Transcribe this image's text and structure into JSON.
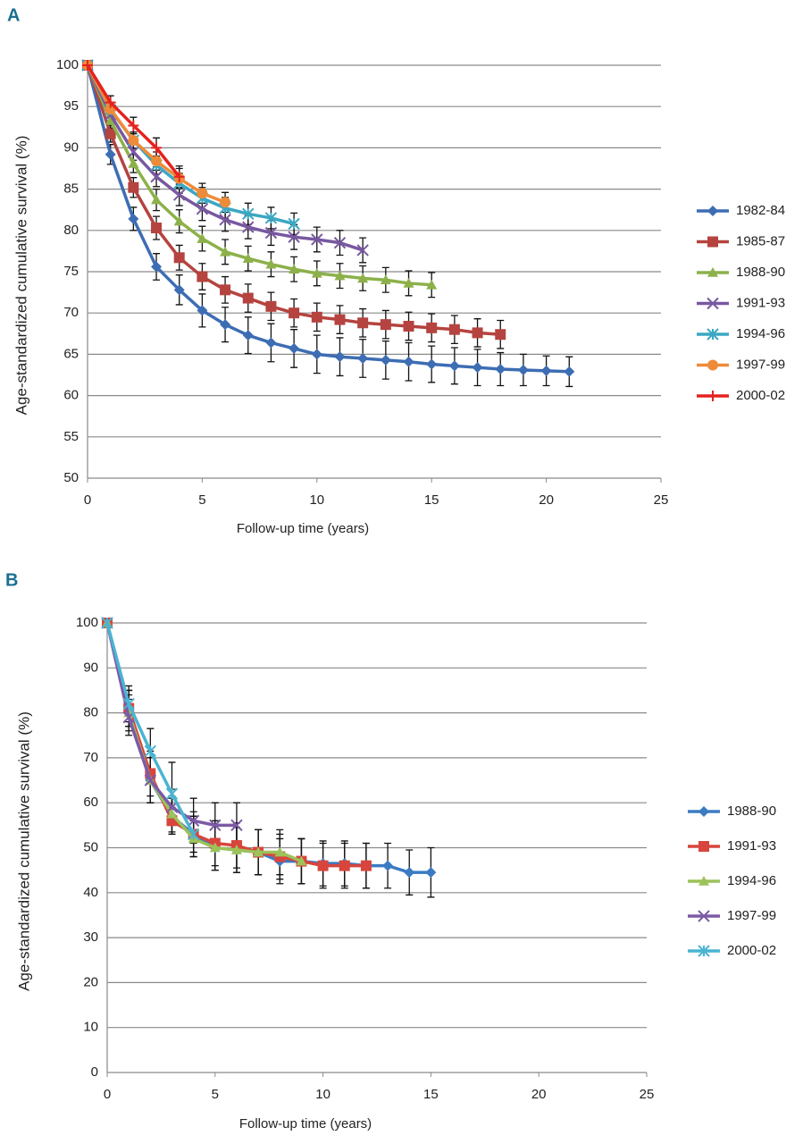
{
  "chart_data": [
    {
      "type": "line",
      "panel": "A",
      "xlabel": "Follow-up time (years)",
      "ylabel": "Age-standardized cumulative survival (%)",
      "xlim": [
        0,
        25
      ],
      "xticks": [
        0,
        5,
        10,
        15,
        20,
        25
      ],
      "ylim": [
        50,
        100
      ],
      "yticks": [
        100,
        95,
        90,
        85,
        80,
        75,
        70,
        65,
        60,
        55,
        50
      ],
      "grid": true,
      "legend": "right",
      "series": [
        {
          "name": "1982-84",
          "color": "#3d6db3",
          "marker": "diamond",
          "x": [
            0,
            1,
            2,
            3,
            4,
            5,
            6,
            7,
            8,
            9,
            10,
            11,
            12,
            13,
            14,
            15,
            16,
            17,
            18,
            19,
            20,
            21
          ],
          "values": [
            100,
            89.2,
            81.4,
            75.6,
            72.8,
            70.3,
            68.6,
            67.3,
            66.4,
            65.7,
            65.0,
            64.7,
            64.5,
            64.3,
            64.1,
            63.8,
            63.6,
            63.4,
            63.2,
            63.1,
            63.0,
            62.9
          ],
          "errors": [
            0,
            1.2,
            1.4,
            1.6,
            1.8,
            2.0,
            2.1,
            2.2,
            2.3,
            2.3,
            2.3,
            2.3,
            2.3,
            2.3,
            2.3,
            2.2,
            2.2,
            2.2,
            2.0,
            1.9,
            1.8,
            1.8
          ]
        },
        {
          "name": "1985-87",
          "color": "#b5433f",
          "marker": "square",
          "x": [
            0,
            1,
            2,
            3,
            4,
            5,
            6,
            7,
            8,
            9,
            10,
            11,
            12,
            13,
            14,
            15,
            16,
            17,
            18
          ],
          "values": [
            100,
            91.7,
            85.2,
            80.3,
            76.7,
            74.4,
            72.8,
            71.8,
            70.8,
            70.0,
            69.5,
            69.2,
            68.8,
            68.6,
            68.4,
            68.2,
            68.0,
            67.6,
            67.4
          ],
          "errors": [
            0,
            1.0,
            1.2,
            1.4,
            1.5,
            1.6,
            1.6,
            1.7,
            1.7,
            1.7,
            1.7,
            1.7,
            1.7,
            1.7,
            1.7,
            1.7,
            1.7,
            1.7,
            1.7
          ]
        },
        {
          "name": "1988-90",
          "color": "#8cb14a",
          "marker": "triangle",
          "x": [
            0,
            1,
            2,
            3,
            4,
            5,
            6,
            7,
            8,
            9,
            10,
            11,
            12,
            13,
            14,
            15
          ],
          "values": [
            100,
            93.3,
            88.1,
            83.7,
            81.1,
            79.0,
            77.4,
            76.6,
            75.9,
            75.3,
            74.8,
            74.5,
            74.2,
            74.0,
            73.6,
            73.4
          ],
          "errors": [
            0,
            0.9,
            1.1,
            1.3,
            1.4,
            1.5,
            1.5,
            1.5,
            1.5,
            1.5,
            1.5,
            1.5,
            1.5,
            1.5,
            1.5,
            1.5
          ]
        },
        {
          "name": "1991-93",
          "color": "#7858a0",
          "marker": "x",
          "x": [
            0,
            1,
            2,
            3,
            4,
            5,
            6,
            7,
            8,
            9,
            10,
            11,
            12
          ],
          "values": [
            100,
            94.0,
            89.5,
            86.5,
            84.3,
            82.6,
            81.3,
            80.4,
            79.7,
            79.2,
            78.9,
            78.5,
            77.6
          ],
          "errors": [
            0,
            0.9,
            1.0,
            1.2,
            1.3,
            1.4,
            1.4,
            1.4,
            1.5,
            1.5,
            1.5,
            1.5,
            1.5
          ]
        },
        {
          "name": "1994-96",
          "color": "#3ca7c3",
          "marker": "asterisk",
          "x": [
            0,
            1,
            2,
            3,
            4,
            5,
            6,
            7,
            8,
            9
          ],
          "values": [
            100,
            94.6,
            90.9,
            87.9,
            85.7,
            83.9,
            82.7,
            82.0,
            81.5,
            80.8
          ],
          "errors": [
            0,
            0.8,
            1.0,
            1.1,
            1.2,
            1.3,
            1.3,
            1.3,
            1.3,
            1.3
          ]
        },
        {
          "name": "1997-99",
          "color": "#ee8b39",
          "marker": "circle",
          "x": [
            0,
            1,
            2,
            3,
            4,
            5,
            6
          ],
          "values": [
            100,
            94.7,
            90.9,
            88.4,
            86.3,
            84.5,
            83.4
          ],
          "errors": [
            0,
            0.8,
            1.0,
            1.1,
            1.2,
            1.2,
            1.2
          ]
        },
        {
          "name": "2000-02",
          "color": "#e5221e",
          "marker": "plus",
          "x": [
            0,
            1,
            2,
            3,
            4
          ],
          "values": [
            100,
            95.5,
            92.7,
            90.0,
            86.5
          ],
          "errors": [
            0,
            0.8,
            1.0,
            1.2,
            1.3
          ]
        }
      ]
    },
    {
      "type": "line",
      "panel": "B",
      "xlabel": "Follow-up time (years)",
      "ylabel": "Age-standardized cumulative survival (%)",
      "xlim": [
        0,
        25
      ],
      "xticks": [
        0,
        5,
        10,
        15,
        20,
        25
      ],
      "ylim": [
        0,
        100
      ],
      "yticks": [
        0,
        10,
        20,
        30,
        40,
        50,
        60,
        70,
        80,
        90,
        100
      ],
      "grid": true,
      "legend": "right",
      "series": [
        {
          "name": "1988-90",
          "color": "#3b7bc2",
          "marker": "diamond",
          "x": [
            0,
            1,
            2,
            3,
            4,
            5,
            6,
            7,
            8,
            9,
            10,
            11,
            12,
            13,
            14,
            15
          ],
          "values": [
            100,
            81,
            65,
            57,
            53,
            50,
            49.5,
            49,
            47,
            47,
            46.5,
            46.5,
            46,
            46,
            44.5,
            44.5
          ],
          "errors": [
            0,
            4,
            5,
            4,
            4,
            5,
            5,
            5,
            5,
            5,
            5,
            5,
            5,
            5,
            5,
            5.5
          ]
        },
        {
          "name": "1991-93",
          "color": "#d8453d",
          "marker": "square",
          "x": [
            0,
            1,
            2,
            3,
            4,
            5,
            6,
            7,
            8,
            9,
            10,
            11,
            12
          ],
          "values": [
            100,
            81,
            66.5,
            56,
            53,
            51,
            50.5,
            49,
            48,
            47,
            46,
            46,
            46
          ],
          "errors": [
            0,
            4,
            5,
            3,
            4,
            5,
            5,
            5,
            5,
            5,
            5,
            5,
            5
          ]
        },
        {
          "name": "1994-96",
          "color": "#9cc259",
          "marker": "triangle",
          "x": [
            0,
            1,
            2,
            3,
            4,
            5,
            6,
            7,
            8,
            9
          ],
          "values": [
            100,
            80,
            65,
            57.5,
            52,
            50,
            49.5,
            49,
            49,
            47
          ],
          "errors": [
            0,
            4,
            5,
            4,
            4,
            5,
            5,
            5,
            5,
            5
          ]
        },
        {
          "name": "1997-99",
          "color": "#7c5aa7",
          "marker": "x",
          "x": [
            0,
            1,
            2,
            3,
            4,
            5,
            6
          ],
          "values": [
            100,
            79,
            65,
            59,
            56,
            55,
            55
          ],
          "errors": [
            0,
            4,
            5,
            4,
            5,
            5,
            5
          ]
        },
        {
          "name": "2000-02",
          "color": "#4ab4d2",
          "marker": "asterisk",
          "x": [
            0,
            1,
            2,
            3,
            4
          ],
          "values": [
            100,
            82,
            71.5,
            62,
            53
          ],
          "errors": [
            0,
            4,
            5,
            7,
            5
          ]
        }
      ]
    }
  ]
}
